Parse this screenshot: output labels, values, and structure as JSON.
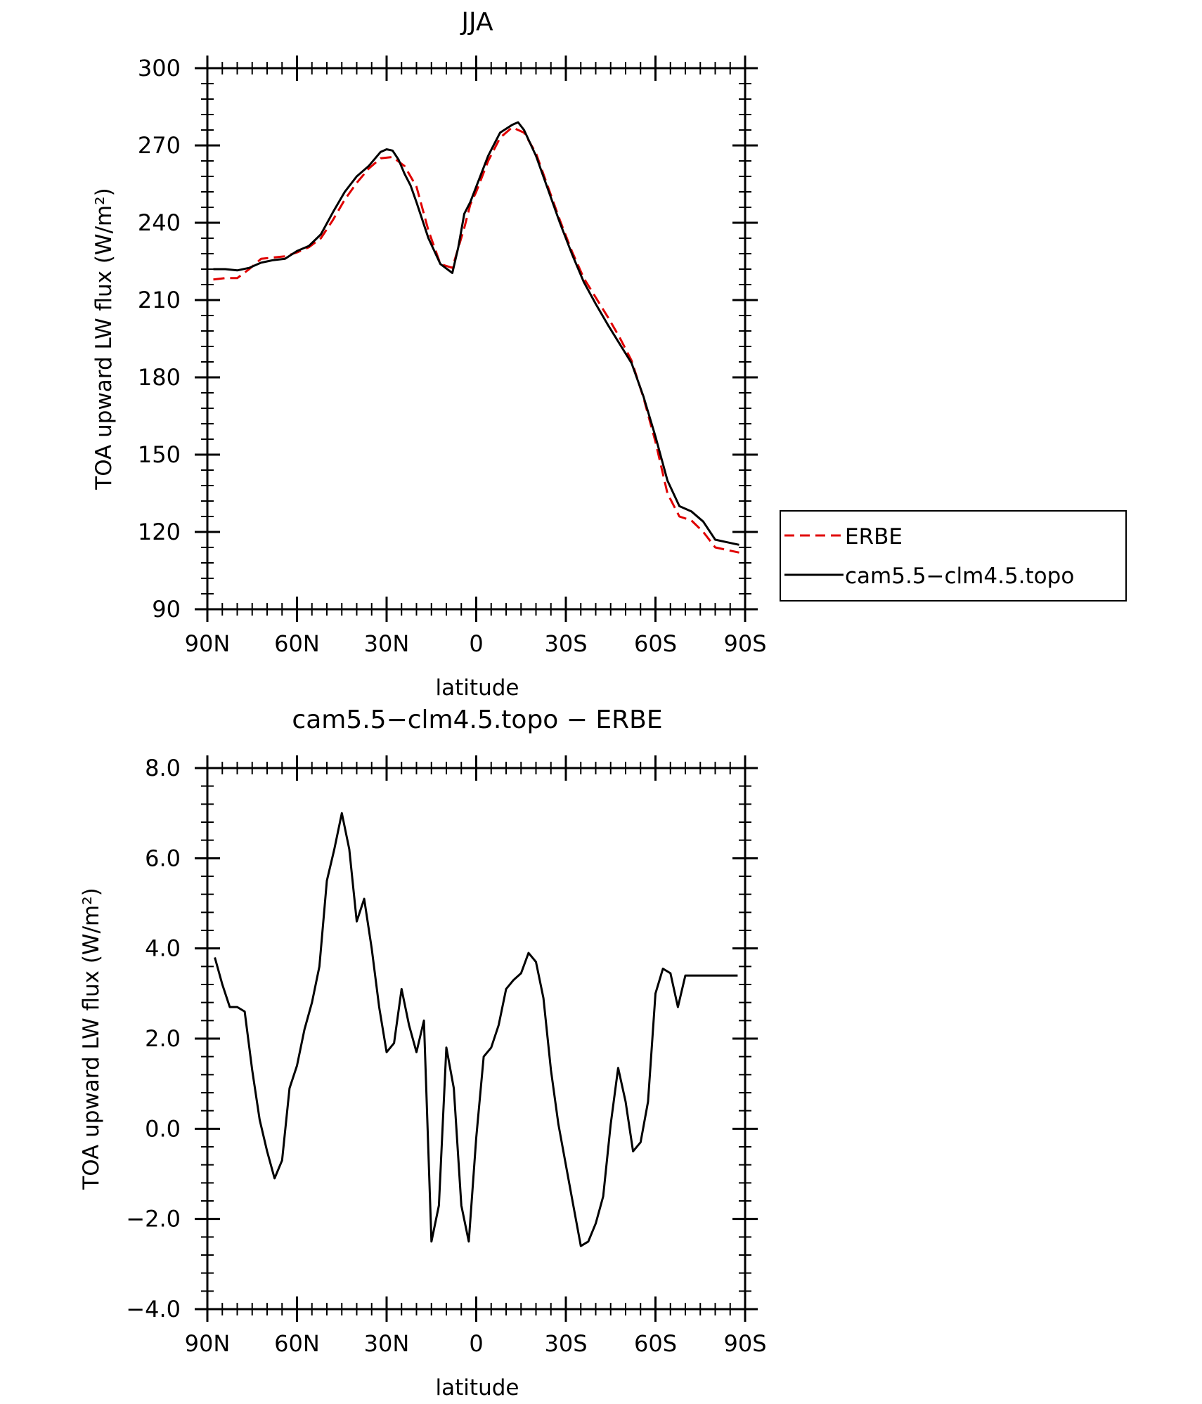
{
  "chart_data": [
    {
      "type": "line",
      "title": "JJA",
      "xlabel": "latitude",
      "ylabel": "TOA upward LW flux (W/m²)",
      "ylim": [
        90,
        300
      ],
      "yticks": [
        90,
        120,
        150,
        180,
        210,
        240,
        270,
        300
      ],
      "ytick_labels": [
        "90",
        "120",
        "150",
        "180",
        "210",
        "240",
        "270",
        "300"
      ],
      "xlim": [
        90,
        -90
      ],
      "xticks": [
        90,
        60,
        30,
        0,
        -30,
        -60,
        -90
      ],
      "xtick_labels": [
        "90N",
        "60N",
        "30N",
        "0",
        "30S",
        "60S",
        "90S"
      ],
      "legend_position": "right, outside the plot",
      "series": [
        {
          "name": "ERBE",
          "color": "#e00000",
          "dash": "dashed",
          "x": [
            88,
            84,
            80,
            76,
            72,
            68,
            64,
            60,
            56,
            52,
            48,
            44,
            40,
            36,
            32,
            28,
            24,
            20,
            16,
            12,
            8,
            4,
            2,
            0,
            -2,
            -4,
            -8,
            -12,
            -16,
            -20,
            -24,
            -28,
            -32,
            -36,
            -40,
            -44,
            -48,
            -52,
            -56,
            -60,
            -64,
            -68,
            -72,
            -76,
            -80,
            -84,
            -88
          ],
          "values": [
            218,
            218.5,
            218.5,
            222,
            226,
            226.5,
            227,
            228.5,
            230.5,
            234,
            241,
            249,
            255.5,
            261,
            265,
            265.5,
            262,
            254,
            237,
            224,
            222.5,
            238,
            247,
            252,
            258,
            264,
            273,
            277,
            275,
            267,
            254,
            241,
            229,
            218.5,
            211,
            203.5,
            195.5,
            186.5,
            172,
            155,
            135,
            126,
            124.5,
            120,
            114,
            113,
            112
          ]
        },
        {
          "name": "cam5.5−clm4.5.topo",
          "color": "#000000",
          "dash": "solid",
          "x": [
            88,
            84,
            80,
            76,
            72,
            68,
            64,
            60,
            56,
            52,
            48,
            44,
            40,
            36,
            32,
            30,
            28,
            26,
            24,
            22,
            20,
            16,
            12,
            8,
            6,
            4,
            2,
            0,
            -2,
            -4,
            -8,
            -12,
            -14,
            -16,
            -20,
            -24,
            -28,
            -32,
            -36,
            -40,
            -44,
            -48,
            -52,
            -56,
            -60,
            -64,
            -68,
            -72,
            -76,
            -80,
            -84,
            -88
          ],
          "values": [
            222,
            222,
            221.5,
            222.5,
            224.5,
            225.5,
            226,
            229,
            231,
            235.5,
            244,
            252,
            258,
            262,
            267.5,
            268.5,
            268,
            264.5,
            259,
            254.5,
            248,
            234,
            224,
            220.5,
            230.5,
            243.5,
            248,
            254,
            260,
            266,
            275,
            278,
            279,
            276,
            266,
            253,
            240,
            228,
            217,
            208.5,
            200.5,
            193,
            185.5,
            172.5,
            157,
            140,
            130,
            128,
            124,
            117,
            116,
            115
          ]
        }
      ]
    },
    {
      "type": "line",
      "title": "cam5.5−clm4.5.topo − ERBE",
      "xlabel": "latitude",
      "ylabel": "TOA upward LW flux (W/m²)",
      "ylim": [
        -4,
        8
      ],
      "yticks": [
        -4,
        -2,
        0,
        2,
        4,
        6,
        8
      ],
      "ytick_labels": [
        "−4.0",
        "−2.0",
        "0.0",
        "2.0",
        "4.0",
        "6.0",
        "8.0"
      ],
      "xlim": [
        90,
        -90
      ],
      "xticks": [
        90,
        60,
        30,
        0,
        -30,
        -60,
        -90
      ],
      "xtick_labels": [
        "90N",
        "60N",
        "30N",
        "0",
        "30S",
        "60S",
        "90S"
      ],
      "series": [
        {
          "color": "#000000",
          "dash": "solid",
          "x": [
            87.5,
            85,
            82.5,
            80,
            77.5,
            75,
            72.5,
            70,
            67.5,
            65,
            62.5,
            60,
            57.5,
            55,
            52.5,
            50,
            47.5,
            45,
            42.5,
            40,
            37.5,
            35,
            32.5,
            30,
            27.5,
            25,
            22.5,
            20,
            17.5,
            15,
            12.5,
            10,
            7.5,
            5,
            2.5,
            0,
            -2.5,
            -5,
            -7.5,
            -10,
            -12.5,
            -15,
            -17.5,
            -20,
            -22.5,
            -25,
            -27.5,
            -30,
            -32.5,
            -35,
            -37.5,
            -40,
            -42.5,
            -45,
            -47.5,
            -50,
            -52.5,
            -55,
            -57.5,
            -60,
            -62.5,
            -65,
            -67.5,
            -70,
            -72.5,
            -75,
            -77.5,
            -80,
            -82.5,
            -85,
            -87.5
          ],
          "values": [
            3.8,
            3.2,
            2.7,
            2.7,
            2.6,
            1.3,
            0.2,
            -0.5,
            -1.1,
            -0.7,
            0.9,
            1.4,
            2.2,
            2.8,
            3.6,
            5.5,
            6.2,
            7.0,
            6.2,
            4.6,
            5.1,
            4.0,
            2.7,
            1.7,
            1.9,
            3.1,
            2.3,
            1.7,
            2.4,
            -2.5,
            -1.7,
            1.8,
            0.9,
            -1.7,
            -2.5,
            -0.2,
            1.6,
            1.8,
            2.3,
            3.1,
            3.3,
            3.45,
            3.9,
            3.7,
            2.9,
            1.3,
            0.1,
            -0.8,
            -1.7,
            -2.6,
            -2.5,
            -2.1,
            -1.5,
            0.1,
            1.35,
            0.6,
            -0.5,
            -0.3,
            0.6,
            3.0,
            3.55,
            3.45,
            2.7,
            3.4,
            3.4,
            3.4,
            3.4,
            3.4,
            3.4,
            3.4,
            3.4
          ]
        }
      ]
    }
  ]
}
